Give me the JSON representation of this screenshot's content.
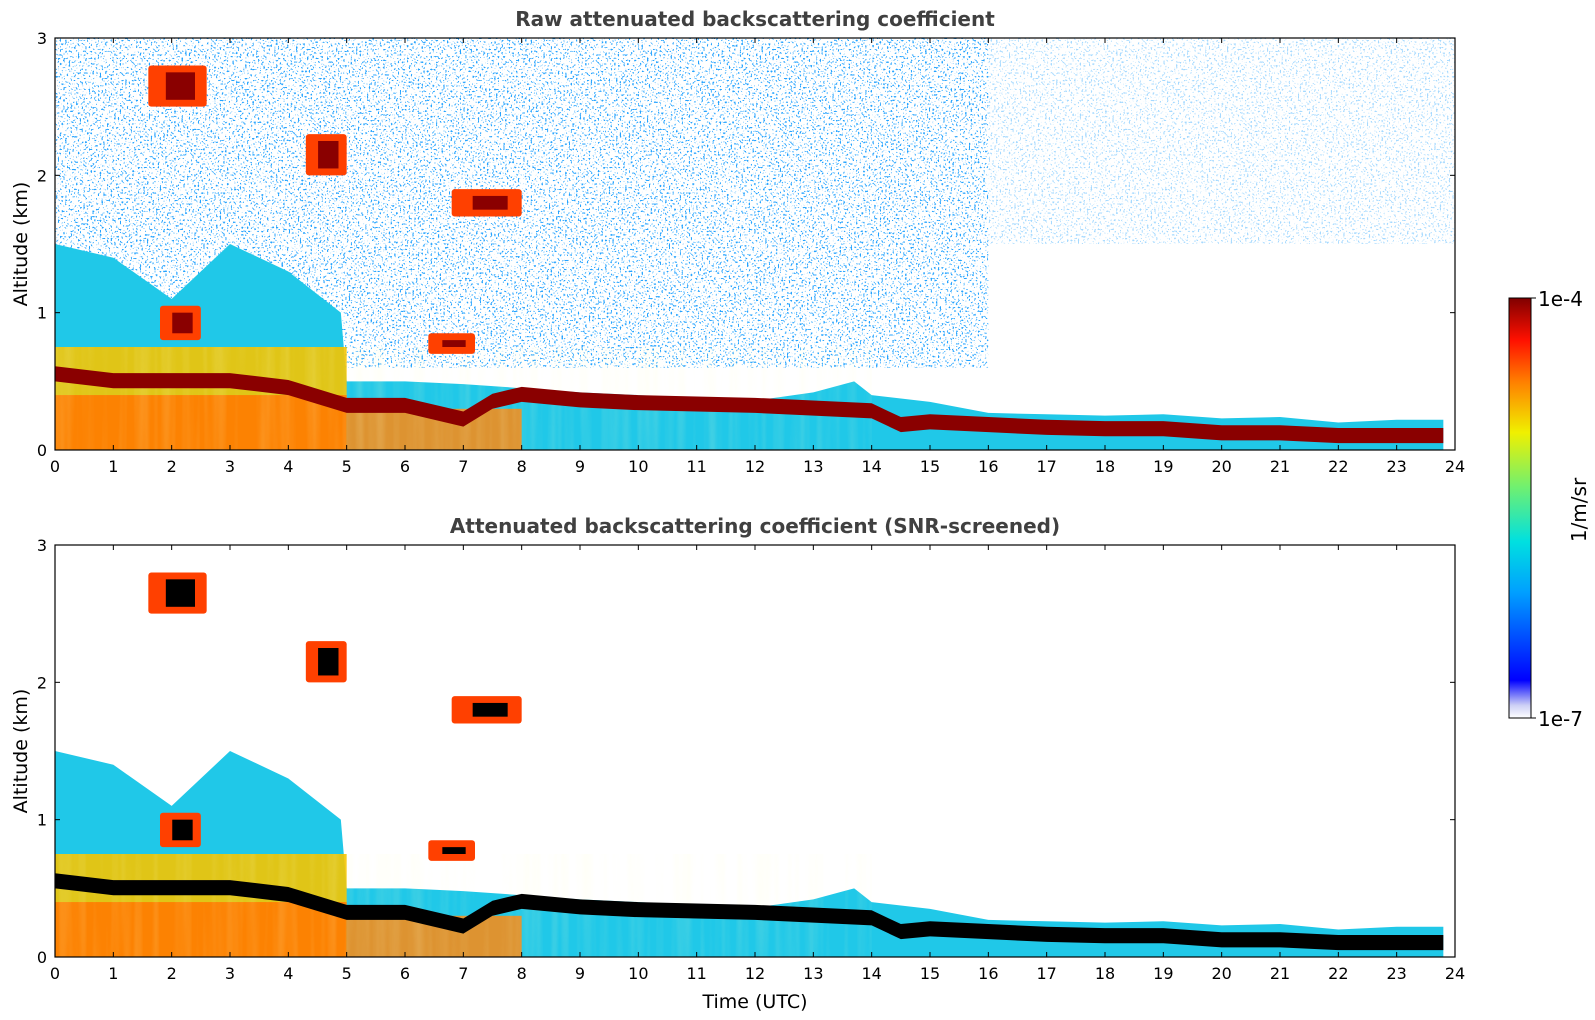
{
  "chart_data": [
    {
      "type": "heatmap",
      "title": "Raw attenuated backscattering coefficient",
      "xlabel": "",
      "ylabel": "Altitude (km)",
      "xlim": [
        0,
        24
      ],
      "ylim": [
        0,
        3
      ],
      "xticks": [
        "0",
        "1",
        "2",
        "3",
        "4",
        "5",
        "6",
        "7",
        "8",
        "9",
        "10",
        "11",
        "12",
        "13",
        "14",
        "15",
        "16",
        "17",
        "18",
        "19",
        "20",
        "21",
        "22",
        "23",
        "24"
      ],
      "yticks": [
        "0",
        "1",
        "2",
        "3"
      ],
      "screened": false
    },
    {
      "type": "heatmap",
      "title": "Attenuated backscattering coefficient (SNR-screened)",
      "xlabel": "Time (UTC)",
      "ylabel": "Altitude (km)",
      "xlim": [
        0,
        24
      ],
      "ylim": [
        0,
        3
      ],
      "xticks": [
        "0",
        "1",
        "2",
        "3",
        "4",
        "5",
        "6",
        "7",
        "8",
        "9",
        "10",
        "11",
        "12",
        "13",
        "14",
        "15",
        "16",
        "17",
        "18",
        "19",
        "20",
        "21",
        "22",
        "23",
        "24"
      ],
      "yticks": [
        "0",
        "1",
        "2",
        "3"
      ],
      "screened": true
    }
  ],
  "colorbar": {
    "label": "1/m/sr",
    "max_label": "1e-4",
    "min_label": "1e-7",
    "colormap": "jet",
    "scale": "log"
  },
  "features": {
    "cloud_base_km": [
      [
        0,
        0.55
      ],
      [
        1,
        0.5
      ],
      [
        2,
        0.5
      ],
      [
        3,
        0.5
      ],
      [
        4,
        0.45
      ],
      [
        5,
        0.32
      ],
      [
        6,
        0.32
      ],
      [
        7,
        0.22
      ],
      [
        7.5,
        0.35
      ],
      [
        8,
        0.4
      ],
      [
        9,
        0.36
      ],
      [
        10,
        0.34
      ],
      [
        11,
        0.33
      ],
      [
        12,
        0.32
      ],
      [
        13,
        0.3
      ],
      [
        14,
        0.28
      ],
      [
        14.5,
        0.18
      ],
      [
        15,
        0.2
      ],
      [
        16,
        0.18
      ],
      [
        17,
        0.16
      ],
      [
        18,
        0.15
      ],
      [
        19,
        0.15
      ],
      [
        20,
        0.12
      ],
      [
        21,
        0.12
      ],
      [
        22,
        0.1
      ],
      [
        23,
        0.1
      ],
      [
        23.8,
        0.1
      ]
    ],
    "boundary_layer_top_km": [
      [
        0,
        1.5
      ],
      [
        1,
        1.4
      ],
      [
        2,
        1.1
      ],
      [
        3,
        1.5
      ],
      [
        4,
        1.3
      ],
      [
        4.9,
        1.0
      ],
      [
        5,
        0.5
      ],
      [
        6,
        0.5
      ],
      [
        7,
        0.48
      ],
      [
        8,
        0.45
      ],
      [
        9,
        0.42
      ],
      [
        10,
        0.4
      ],
      [
        11,
        0.38
      ],
      [
        12,
        0.36
      ],
      [
        13,
        0.42
      ],
      [
        13.7,
        0.5
      ],
      [
        14,
        0.4
      ],
      [
        15,
        0.35
      ],
      [
        16,
        0.27
      ],
      [
        17,
        0.26
      ],
      [
        18,
        0.25
      ],
      [
        19,
        0.26
      ],
      [
        20,
        0.23
      ],
      [
        21,
        0.24
      ],
      [
        22,
        0.2
      ],
      [
        23,
        0.22
      ],
      [
        23.8,
        0.22
      ]
    ],
    "elevated_layers": [
      {
        "t0": 1.6,
        "t1": 2.6,
        "z0": 2.5,
        "z1": 2.8
      },
      {
        "t0": 4.3,
        "t1": 5.0,
        "z0": 2.0,
        "z1": 2.3
      },
      {
        "t0": 6.8,
        "t1": 8.0,
        "z0": 1.7,
        "z1": 1.9
      },
      {
        "t0": 1.8,
        "t1": 2.5,
        "z0": 0.8,
        "z1": 1.05
      },
      {
        "t0": 6.4,
        "t1": 7.2,
        "z0": 0.7,
        "z1": 0.85
      }
    ]
  }
}
